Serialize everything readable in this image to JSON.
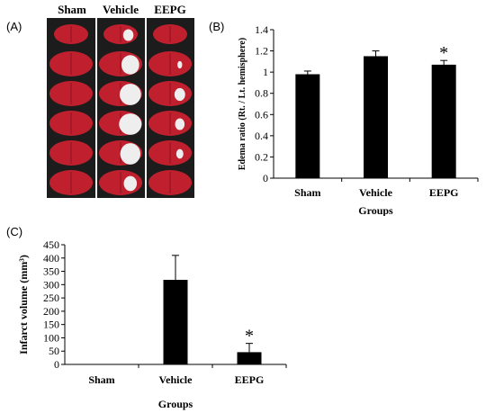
{
  "panels": {
    "a": {
      "letter": "(A)",
      "columns": [
        "Sham",
        "Vehicle",
        "EEPG"
      ]
    },
    "b": {
      "letter": "(B)"
    },
    "c": {
      "letter": "(C)"
    }
  },
  "colors": {
    "bar": "#000000",
    "tissue": "#c0202e",
    "infarct": "#eeeeee",
    "photo_bg": "#1c1c1c"
  },
  "chart_data": [
    {
      "type": "bar",
      "panel": "B",
      "categories": [
        "Sham",
        "Vehicle",
        "EEPG"
      ],
      "values": [
        0.98,
        1.15,
        1.07
      ],
      "error": [
        0.03,
        0.05,
        0.04
      ],
      "significance": [
        "",
        "",
        "*"
      ],
      "xlabel": "Groups",
      "ylabel": "Edema ratio (Rt. / Lt. hemisphere)",
      "ylim": [
        0,
        1.4
      ],
      "yticks": [
        "0",
        "0.2",
        "0.4",
        "0.6",
        "0.8",
        "1",
        "1.2",
        "1.4"
      ]
    },
    {
      "type": "bar",
      "panel": "C",
      "categories": [
        "Sham",
        "Vehicle",
        "EEPG"
      ],
      "values": [
        0,
        318,
        46
      ],
      "error": [
        0,
        92,
        33
      ],
      "significance": [
        "",
        "",
        "*"
      ],
      "xlabel": "Groups",
      "ylabel": "Infarct volume (mm³)",
      "ylim": [
        0,
        450
      ],
      "yticks": [
        "0",
        "50",
        "100",
        "150",
        "200",
        "250",
        "300",
        "350",
        "400",
        "450"
      ]
    }
  ]
}
